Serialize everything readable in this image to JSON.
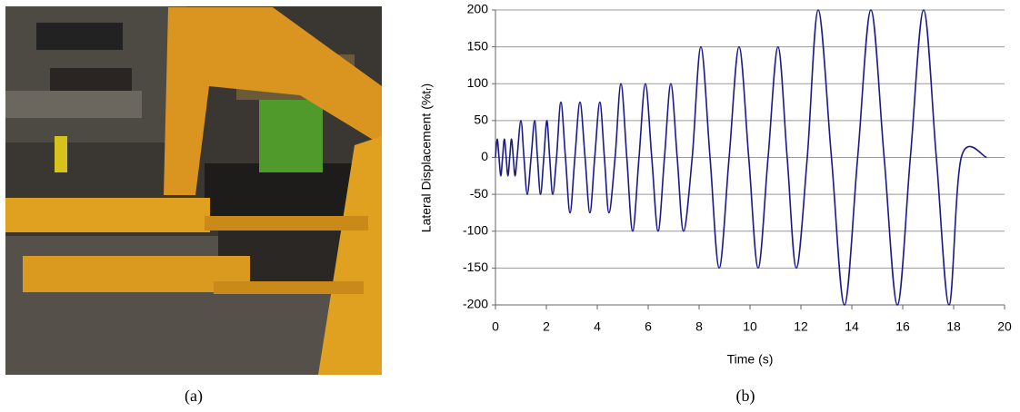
{
  "captions": [
    "(a)",
    "(b)"
  ],
  "chart_data": {
    "type": "line",
    "xlabel": "Time (s)",
    "ylabel": "Lateral Displacement (%tᵣ)",
    "xlim": [
      0,
      20
    ],
    "xticks": [
      0,
      2,
      4,
      6,
      8,
      10,
      12,
      14,
      16,
      18,
      20
    ],
    "ylim": [
      -200,
      200
    ],
    "yticks": [
      -200,
      -150,
      -100,
      -50,
      0,
      50,
      100,
      150,
      200
    ],
    "grid": true,
    "x": [
      0,
      0.07,
      0.14,
      0.21,
      0.28,
      0.35,
      0.42,
      0.49,
      0.56,
      0.63,
      0.7,
      0.77,
      0.85,
      1.0,
      1.12,
      1.25,
      1.4,
      1.54,
      1.65,
      1.77,
      1.9,
      2.02,
      2.13,
      2.25,
      2.4,
      2.57,
      2.75,
      2.93,
      3.12,
      3.32,
      3.52,
      3.71,
      3.9,
      4.1,
      4.28,
      4.46,
      4.7,
      4.93,
      5.16,
      5.39,
      5.64,
      5.89,
      6.14,
      6.39,
      6.64,
      6.89,
      7.14,
      7.39,
      7.73,
      8.07,
      8.43,
      8.79,
      9.18,
      9.57,
      9.95,
      10.32,
      10.71,
      11.1,
      11.46,
      11.82,
      12.25,
      12.68,
      13.2,
      13.71,
      14.23,
      14.75,
      15.27,
      15.79,
      16.3,
      16.82,
      17.32,
      17.82,
      18.3,
      19.3
    ],
    "series": [
      {
        "color": "#1a1a8c",
        "values": [
          0,
          25,
          0,
          -25,
          0,
          25,
          0,
          -25,
          0,
          25,
          0,
          -25,
          0,
          50,
          0,
          -50,
          0,
          50,
          0,
          -50,
          0,
          50,
          0,
          -50,
          0,
          75,
          0,
          -75,
          0,
          75,
          0,
          -75,
          0,
          75,
          0,
          -75,
          0,
          100,
          0,
          -100,
          0,
          100,
          0,
          -100,
          0,
          100,
          0,
          -100,
          0,
          150,
          0,
          -150,
          0,
          150,
          0,
          -150,
          0,
          150,
          0,
          -150,
          0,
          200,
          0,
          -200,
          0,
          200,
          0,
          -200,
          0,
          200,
          0,
          -200,
          0,
          0
        ]
      }
    ]
  }
}
